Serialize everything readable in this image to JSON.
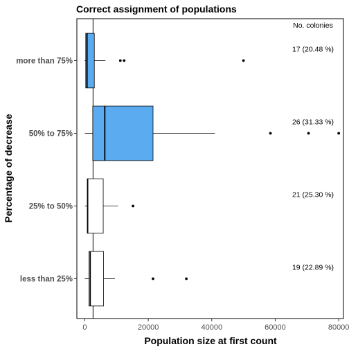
{
  "chart_data": {
    "type": "boxplot",
    "orientation": "horizontal",
    "title": "Correct assignment of populations",
    "xlabel": "Population size at first count",
    "ylabel": "Percentage of decrease",
    "xlim": [
      -2500,
      81500
    ],
    "x_ticks": [
      0,
      20000,
      40000,
      60000,
      80000
    ],
    "x_tick_labels": [
      "0",
      "20000",
      "40000",
      "60000",
      "80000"
    ],
    "reference_line_x": 2600,
    "grid": false,
    "annotation_header": "No. colonies",
    "colors": {
      "highlight": "#5aabef",
      "default": "#ffffff",
      "outline": "#000000"
    },
    "categories": [
      {
        "label": "more than 75%",
        "min": 0,
        "q1": 300,
        "median": 700,
        "q3": 3000,
        "max": 6500,
        "outliers": [
          11200,
          12400,
          50000
        ],
        "annotation": "17 (20.48 %)",
        "highlighted": true
      },
      {
        "label": "50% to 75%",
        "min": 0,
        "q1": 2500,
        "median": 6300,
        "q3": 21500,
        "max": 41000,
        "outliers": [
          58500,
          70500,
          80000
        ],
        "annotation": "26 (31.33 %)",
        "highlighted": true
      },
      {
        "label": "25% to 50%",
        "min": 0,
        "q1": 800,
        "median": 900,
        "q3": 5800,
        "max": 10500,
        "outliers": [
          15200
        ],
        "annotation": "21 (25.30 %)",
        "highlighted": false
      },
      {
        "label": "less than 25%",
        "min": 0,
        "q1": 1300,
        "median": 1700,
        "q3": 5900,
        "max": 9500,
        "outliers": [
          21500,
          32000
        ],
        "annotation": "19 (22.89 %)",
        "highlighted": false
      }
    ]
  }
}
